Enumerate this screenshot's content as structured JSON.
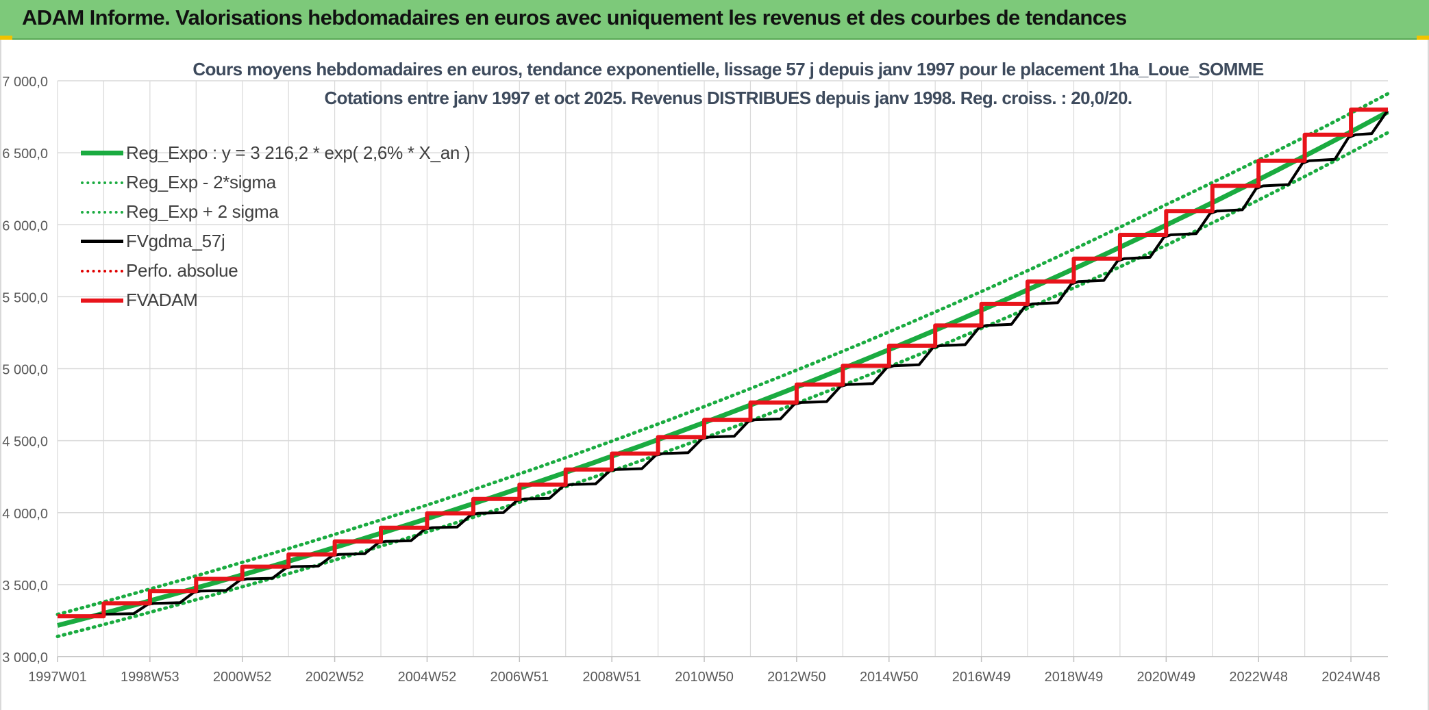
{
  "banner": {
    "title": "ADAM Informe. Valorisations hebdomadaires en euros avec uniquement les revenus et des courbes de tendances"
  },
  "chart_data": {
    "type": "line",
    "title": "Cours moyens hebdomadaires en euros, tendance exponentielle, lissage 57 j depuis janv 1997 pour le placement 1ha_Loue_SOMME",
    "subtitle": "Cotations entre janv 1997 et oct 2025. Revenus DISTRIBUES depuis janv 1998. Reg. croiss. : 20,0/20.",
    "xlabel": "",
    "ylabel": "",
    "ylim": [
      3000,
      7000
    ],
    "yticks": [
      "3 000,0",
      "3 500,0",
      "4 000,0",
      "4 500,0",
      "5 000,0",
      "5 500,0",
      "6 000,0",
      "6 500,0",
      "7 000,0"
    ],
    "xlim": [
      1997.0,
      2025.8
    ],
    "xticks": [
      "1997W01",
      "1998W53",
      "2000W52",
      "2002W52",
      "2004W52",
      "2006W51",
      "2008W51",
      "2010W50",
      "2012W50",
      "2014W50",
      "2016W49",
      "2018W49",
      "2020W49",
      "2022W48",
      "2024W48"
    ],
    "grid": true,
    "legend_position": "top-left",
    "series": [
      {
        "name": "Reg_Expo : y = 3 216,2 * exp( 2,6% *  X_an )",
        "color": "#1aab40",
        "style": "solid",
        "x": [
          1997.0,
          2001.0,
          2005.0,
          2009.0,
          2013.0,
          2017.0,
          2021.0,
          2025.8
        ],
        "values": [
          3216.2,
          3568.0,
          3958.5,
          4391.9,
          4872.5,
          5406.0,
          5997.4,
          6783.9
        ]
      },
      {
        "name": "Reg_Exp - 2*sigma",
        "color": "#1aab40",
        "style": "dotted",
        "x": [
          1997.0,
          2001.0,
          2005.0,
          2009.0,
          2013.0,
          2017.0,
          2021.0,
          2025.8
        ],
        "values": [
          3140.0,
          3485.0,
          3866.0,
          4290.0,
          4760.0,
          5280.0,
          5858.0,
          6640.0
        ]
      },
      {
        "name": "Reg_Exp + 2 sigma",
        "color": "#1aab40",
        "style": "dotted",
        "x": [
          1997.0,
          2001.0,
          2005.0,
          2009.0,
          2013.0,
          2017.0,
          2021.0,
          2025.8
        ],
        "values": [
          3293.0,
          3655.0,
          4053.0,
          4497.0,
          4990.0,
          5536.0,
          6140.0,
          6910.0
        ]
      },
      {
        "name": "FVgdma_57j",
        "color": "#000000",
        "style": "solid",
        "x": [
          1997.0,
          1998.0,
          1999.0,
          2000.0,
          2001.0,
          2002.0,
          2003.0,
          2004.0,
          2005.0,
          2006.0,
          2007.0,
          2008.0,
          2009.0,
          2010.0,
          2011.0,
          2012.0,
          2013.0,
          2014.0,
          2015.0,
          2016.0,
          2017.0,
          2018.0,
          2019.0,
          2020.0,
          2021.0,
          2022.0,
          2023.0,
          2024.0,
          2025.0,
          2025.8
        ],
        "values": [
          3280,
          3295,
          3370,
          3455,
          3540,
          3625,
          3710,
          3800,
          3895,
          3995,
          4095,
          4195,
          4300,
          4410,
          4525,
          4645,
          4765,
          4890,
          5020,
          5160,
          5300,
          5450,
          5605,
          5765,
          5930,
          6095,
          6270,
          6445,
          6625,
          6790
        ]
      },
      {
        "name": "Perfo. absolue",
        "color": "#e00000",
        "style": "dotted",
        "x": [],
        "values": []
      },
      {
        "name": "FVADAM",
        "color": "#e8141b",
        "style": "step",
        "x": [
          1997.0,
          1998.0,
          1999.0,
          2000.0,
          2001.0,
          2002.0,
          2003.0,
          2004.0,
          2005.0,
          2006.0,
          2007.0,
          2008.0,
          2009.0,
          2010.0,
          2011.0,
          2012.0,
          2013.0,
          2014.0,
          2015.0,
          2016.0,
          2017.0,
          2018.0,
          2019.0,
          2020.0,
          2021.0,
          2022.0,
          2023.0,
          2024.0,
          2025.0,
          2025.8
        ],
        "values": [
          3280,
          3370,
          3455,
          3540,
          3625,
          3710,
          3800,
          3895,
          3995,
          4095,
          4195,
          4300,
          4410,
          4525,
          4645,
          4765,
          4890,
          5020,
          5160,
          5300,
          5450,
          5605,
          5765,
          5930,
          6095,
          6270,
          6445,
          6625,
          6800,
          6800
        ]
      }
    ]
  }
}
